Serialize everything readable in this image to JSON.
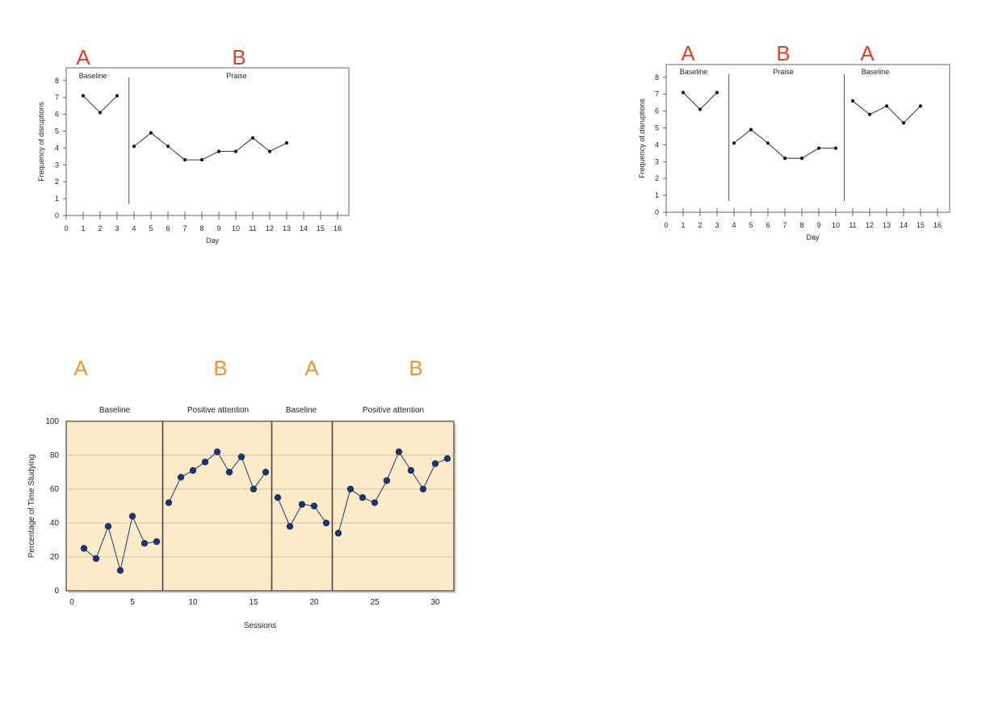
{
  "chart_data": [
    {
      "type": "line",
      "phase_letters": [
        "A",
        "B"
      ],
      "phase_labels": [
        "Baseline",
        "Praise"
      ],
      "xlabel": "Day",
      "ylabel": "Frequency of disruptions",
      "xlim": [
        0,
        16
      ],
      "ylim": [
        0,
        8
      ],
      "x_ticks": [
        "0",
        "1",
        "2",
        "3",
        "4",
        "5",
        "6",
        "7",
        "8",
        "9",
        "10",
        "11",
        "12",
        "13",
        "14",
        "15",
        "16"
      ],
      "y_ticks": [
        "0",
        "1",
        "2",
        "3",
        "4",
        "5",
        "6",
        "7",
        "8"
      ],
      "series": [
        {
          "x": [
            1,
            2,
            3
          ],
          "y": [
            7.1,
            6.1,
            7.1
          ]
        },
        {
          "x": [
            4,
            5,
            6,
            7,
            8,
            9,
            10,
            11,
            12,
            13
          ],
          "y": [
            4.1,
            4.9,
            4.1,
            3.3,
            3.3,
            3.8,
            3.8,
            4.6,
            3.8,
            4.3
          ]
        }
      ],
      "phase_boundaries": [
        3.7
      ],
      "letter_color": "#e0402a"
    },
    {
      "type": "line",
      "phase_letters": [
        "A",
        "B",
        "A"
      ],
      "phase_labels": [
        "Baseline",
        "Praise",
        "Baseline"
      ],
      "xlabel": "Day",
      "ylabel": "Frequency of disruptions",
      "xlim": [
        0,
        16
      ],
      "ylim": [
        0,
        8
      ],
      "x_ticks": [
        "0",
        "1",
        "2",
        "3",
        "4",
        "5",
        "6",
        "7",
        "8",
        "9",
        "10",
        "11",
        "12",
        "13",
        "14",
        "15",
        "16"
      ],
      "y_ticks": [
        "0",
        "1",
        "2",
        "3",
        "4",
        "5",
        "6",
        "7",
        "8"
      ],
      "series": [
        {
          "x": [
            1,
            2,
            3
          ],
          "y": [
            7.1,
            6.1,
            7.1
          ]
        },
        {
          "x": [
            4,
            5,
            6,
            7,
            8,
            9,
            10
          ],
          "y": [
            4.1,
            4.9,
            4.1,
            3.2,
            3.2,
            3.8,
            3.8
          ]
        },
        {
          "x": [
            11,
            12,
            13,
            14,
            15
          ],
          "y": [
            6.6,
            5.8,
            6.3,
            5.3,
            6.3
          ]
        }
      ],
      "phase_boundaries": [
        3.7,
        10.5
      ],
      "letter_color": "#e0402a"
    },
    {
      "type": "line",
      "phase_letters": [
        "A",
        "B",
        "A",
        "B"
      ],
      "phase_labels": [
        "Baseline",
        "Positive attention",
        "Baseline",
        "Positive attention"
      ],
      "xlabel": "Sessions",
      "ylabel": "Percentage of Time Studying",
      "xlim": [
        0,
        31.5
      ],
      "ylim": [
        0,
        100
      ],
      "x_ticks": [
        "0",
        "5",
        "10",
        "15",
        "20",
        "25",
        "30"
      ],
      "x_tick_values": [
        0,
        5,
        10,
        15,
        20,
        25,
        30
      ],
      "y_ticks": [
        "0",
        "20",
        "40",
        "60",
        "80",
        "100"
      ],
      "series": [
        {
          "x": [
            1,
            2,
            3,
            4,
            5,
            6,
            7
          ],
          "y": [
            25,
            19,
            38,
            12,
            44,
            28,
            29
          ]
        },
        {
          "x": [
            8,
            9,
            10,
            11,
            12,
            13,
            14,
            15,
            16
          ],
          "y": [
            52,
            67,
            71,
            76,
            82,
            70,
            79,
            60,
            70
          ]
        },
        {
          "x": [
            17,
            18,
            19,
            20,
            21
          ],
          "y": [
            55,
            38,
            51,
            50,
            40
          ]
        },
        {
          "x": [
            22,
            23,
            24,
            25,
            26,
            27,
            28,
            29,
            30,
            31
          ],
          "y": [
            34,
            60,
            55,
            52,
            65,
            82,
            71,
            60,
            75,
            78
          ]
        }
      ],
      "phase_boundaries": [
        7.5,
        16.5,
        21.5
      ],
      "grid": true,
      "background_color": "#fcebc8",
      "marker_color": "#1f3566",
      "letter_color": "#f39233"
    }
  ]
}
